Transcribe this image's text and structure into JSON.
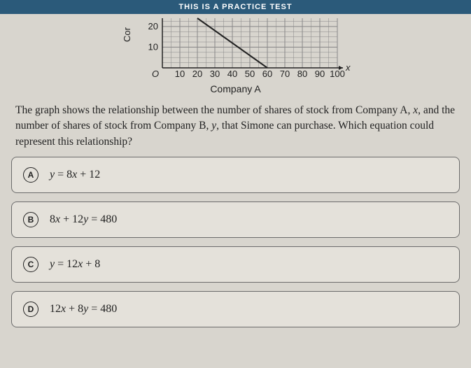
{
  "banner": {
    "text": "THIS IS A PRACTICE TEST"
  },
  "chart": {
    "type": "line",
    "ylabel": "Cor",
    "xlabel": "Company A",
    "x_var": "x",
    "origin_label": "O",
    "xlim": [
      0,
      100
    ],
    "ylim": [
      0,
      24
    ],
    "xticks": [
      10,
      20,
      30,
      40,
      50,
      60,
      70,
      80,
      90,
      100
    ],
    "yticks_labeled": [
      10,
      20
    ],
    "minor_grid": true,
    "grid_color": "#888888",
    "background_color": "#d8d5ce",
    "line_color": "#222222",
    "line_width": 2,
    "line_points": [
      [
        20,
        24
      ],
      [
        60,
        0
      ]
    ],
    "tick_fontsize": 13,
    "label_fontsize": 14,
    "axis_color": "#222222"
  },
  "question": {
    "text_html": "The graph shows the relationship between the number of shares of stock from Company A, <span class=\"math-var\">x</span>, and the number of shares of stock from Company B, <span class=\"math-var\">y</span>, that Simone can purchase. Which equation could represent this relationship?"
  },
  "options": [
    {
      "letter": "A",
      "html": "<span class=\"math-var\">y</span> = 8<span class=\"math-var\">x</span> + 12"
    },
    {
      "letter": "B",
      "html": "8<span class=\"math-var\">x</span> + 12<span class=\"math-var\">y</span> = 480"
    },
    {
      "letter": "C",
      "html": "<span class=\"math-var\">y</span> = 12<span class=\"math-var\">x</span> + 8"
    },
    {
      "letter": "D",
      "html": "12<span class=\"math-var\">x</span> + 8<span class=\"math-var\">y</span> = 480"
    }
  ]
}
